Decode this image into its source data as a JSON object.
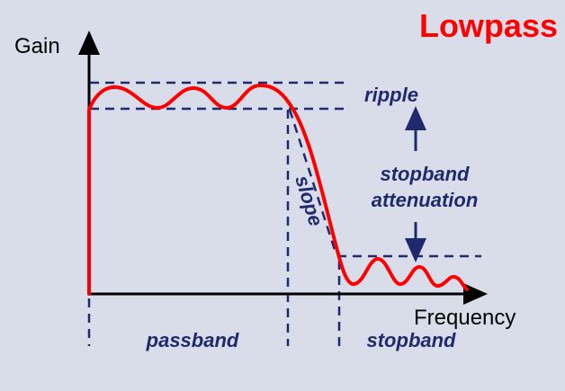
{
  "title": "Lowpass",
  "axes": {
    "y_label": "Gain",
    "x_label": "Frequency"
  },
  "labels": {
    "ripple": "ripple",
    "slope": "slope",
    "stopband_attenuation_line1": "stopband",
    "stopband_attenuation_line2": "attenuation",
    "passband": "passband",
    "stopband": "stopband"
  },
  "colors": {
    "background": "#d9dde9",
    "curve": "#ff0000",
    "title": "#ff0000",
    "annotation": "#1f2a6e",
    "axis": "#000000"
  }
}
